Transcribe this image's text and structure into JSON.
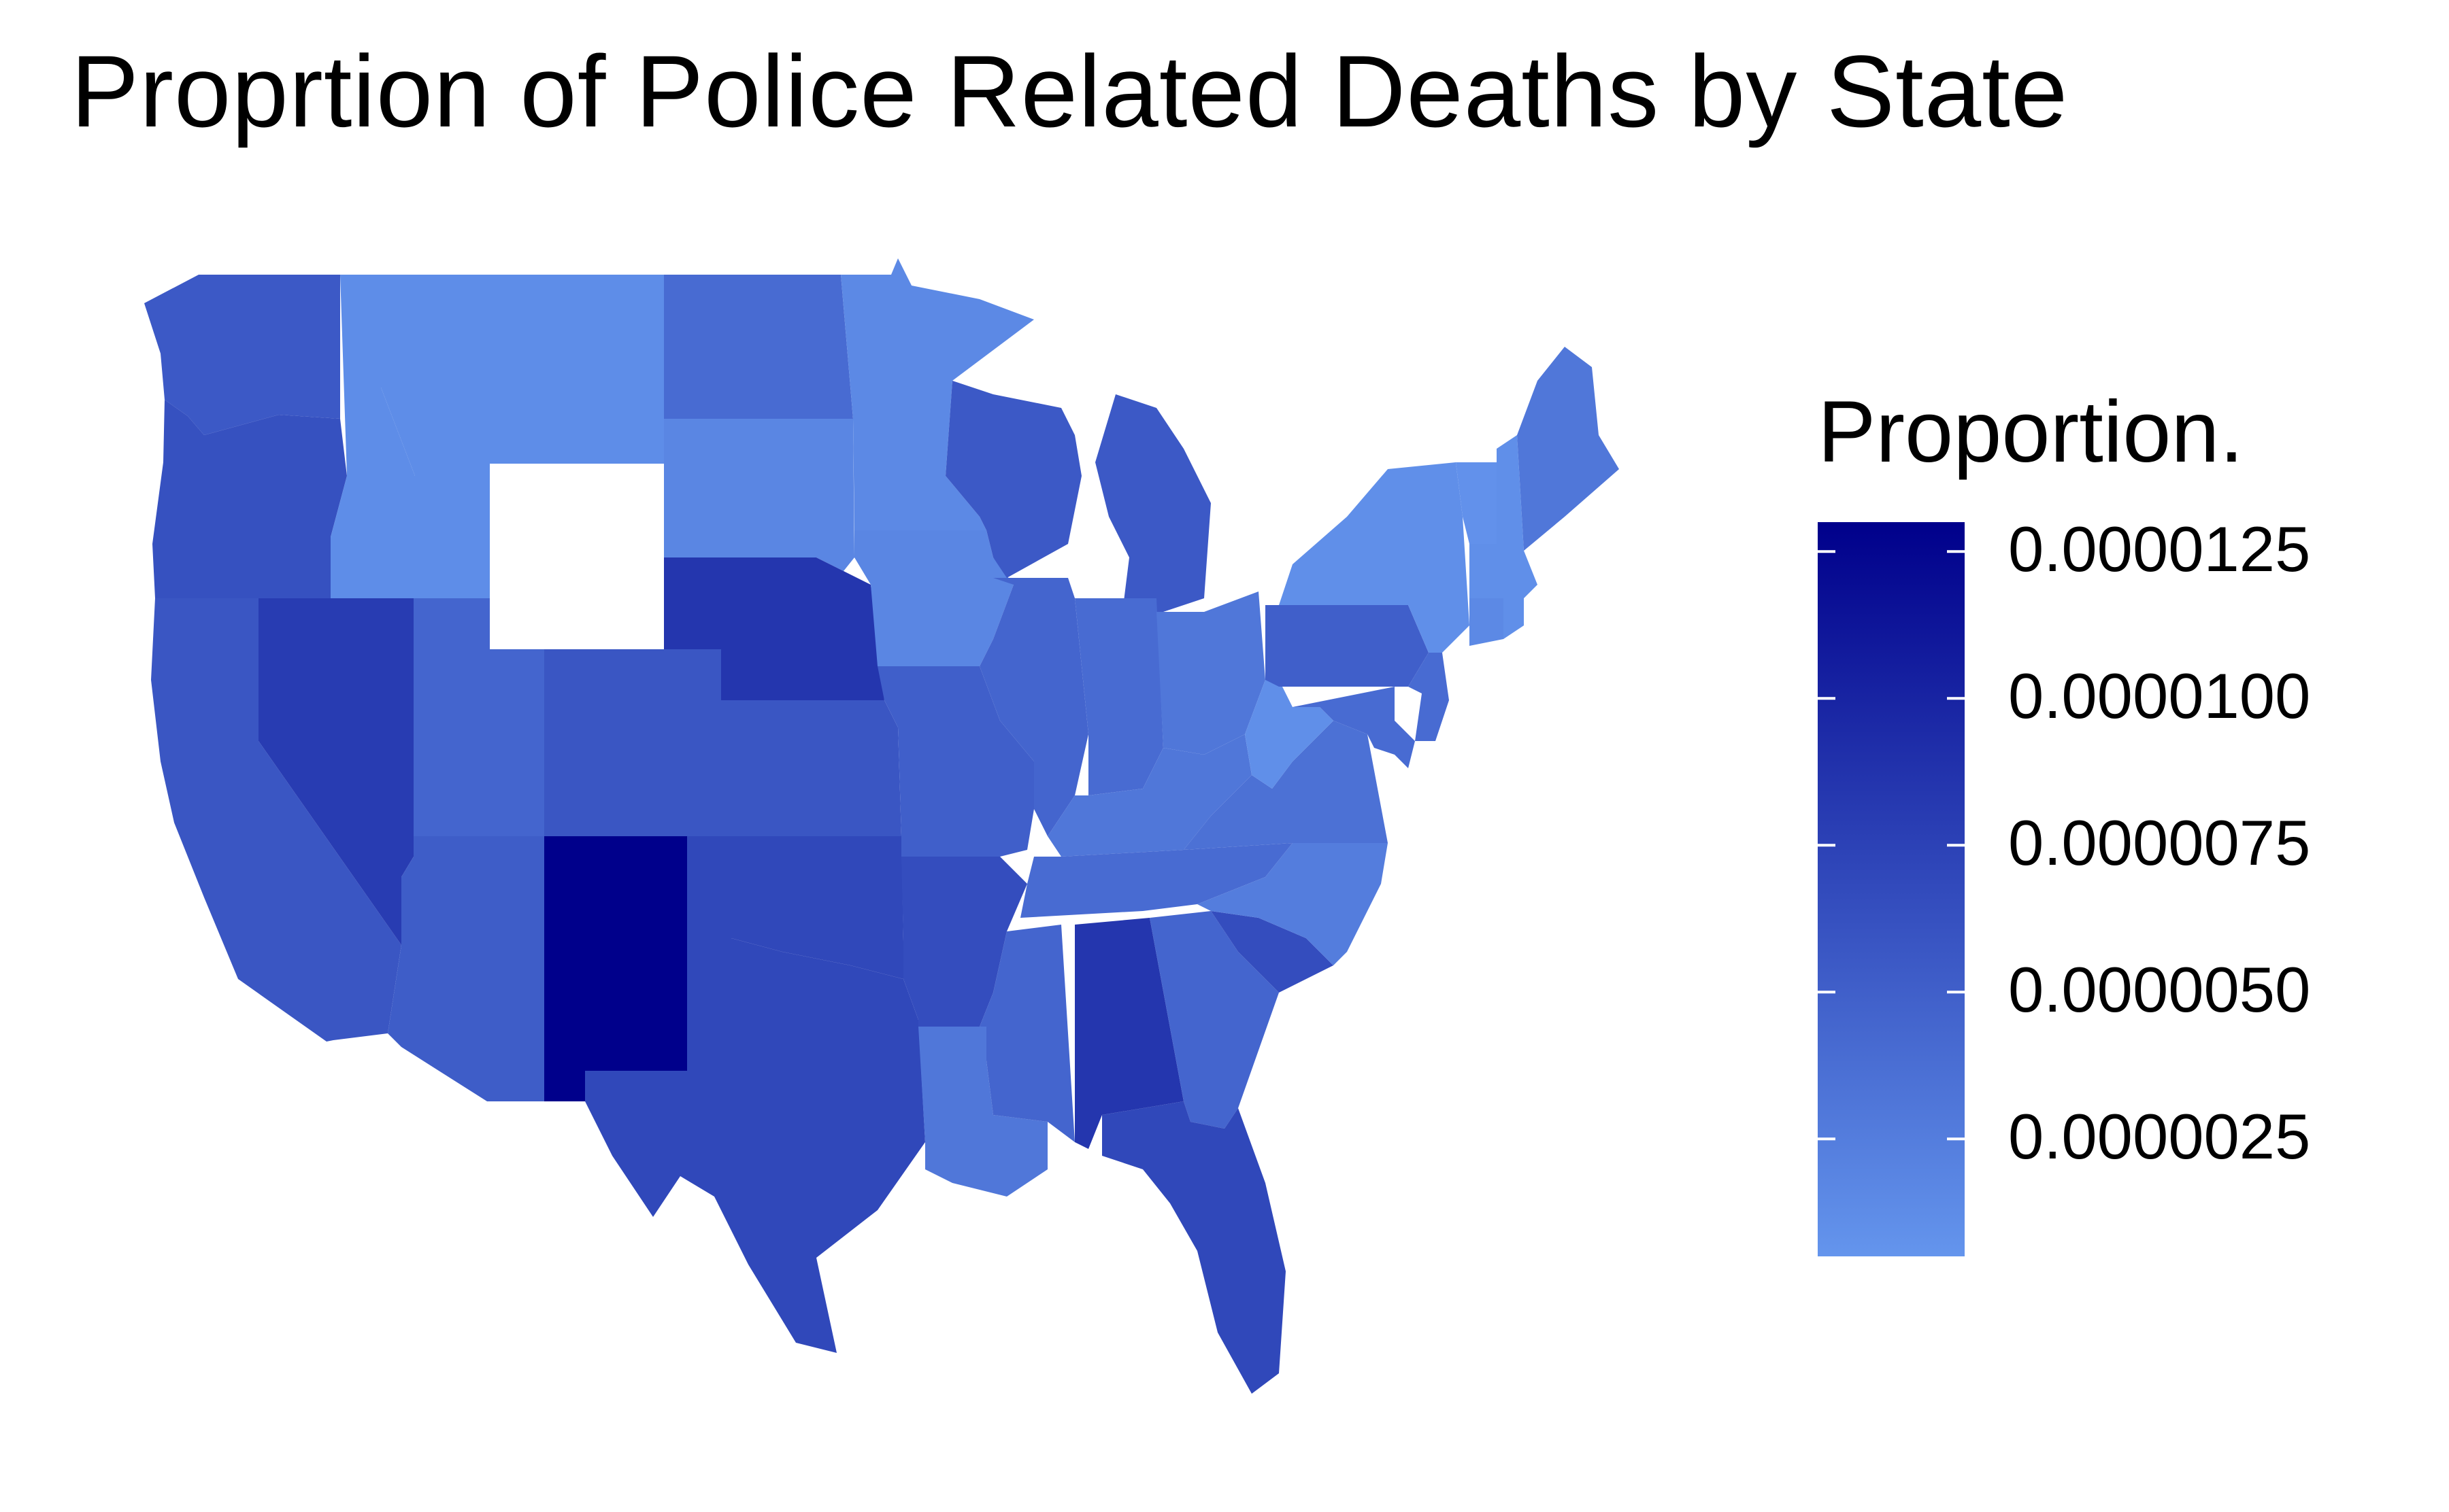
{
  "title": "Proprtion of Police Related Deaths by State",
  "legend": {
    "title": "Proportion.",
    "color_low": "#6495ED",
    "color_high": "#00008B",
    "domain": [
      5e-07,
      1.3e-05
    ],
    "ticks": [
      {
        "value": 1.25e-05,
        "label": "0.0000125"
      },
      {
        "value": 1e-05,
        "label": "0.0000100"
      },
      {
        "value": 7.5e-06,
        "label": "0.0000075"
      },
      {
        "value": 5e-06,
        "label": "0.0000050"
      },
      {
        "value": 2.5e-06,
        "label": "0.0000025"
      }
    ]
  },
  "no_data_color": "#FFFFFF",
  "states": [
    {
      "name": "washington",
      "value": 5.5e-06
    },
    {
      "name": "oregon",
      "value": 6.2e-06
    },
    {
      "name": "california",
      "value": 5.8e-06
    },
    {
      "name": "nevada",
      "value": 8e-06
    },
    {
      "name": "idaho",
      "value": 1.2e-06
    },
    {
      "name": "montana",
      "value": 1.2e-06
    },
    {
      "name": "wyoming",
      "value": null
    },
    {
      "name": "utah",
      "value": 4.5e-06
    },
    {
      "name": "arizona",
      "value": 5.2e-06
    },
    {
      "name": "colorado",
      "value": 5.8e-06
    },
    {
      "name": "new mexico",
      "value": 1.3e-05
    },
    {
      "name": "north dakota",
      "value": 4e-06
    },
    {
      "name": "south dakota",
      "value": 1.8e-06
    },
    {
      "name": "nebraska",
      "value": 8.5e-06
    },
    {
      "name": "kansas",
      "value": 5.8e-06
    },
    {
      "name": "oklahoma",
      "value": 7e-06
    },
    {
      "name": "texas",
      "value": 7e-06
    },
    {
      "name": "minnesota",
      "value": 1.5e-06
    },
    {
      "name": "iowa",
      "value": 1.8e-06
    },
    {
      "name": "missouri",
      "value": 5e-06
    },
    {
      "name": "arkansas",
      "value": 6.5e-06
    },
    {
      "name": "louisiana",
      "value": 3e-06
    },
    {
      "name": "wisconsin",
      "value": 5.5e-06
    },
    {
      "name": "illinois",
      "value": 4.5e-06
    },
    {
      "name": "michigan",
      "value": 5.5e-06
    },
    {
      "name": "indiana",
      "value": 4e-06
    },
    {
      "name": "ohio",
      "value": 3e-06
    },
    {
      "name": "kentucky",
      "value": 3e-06
    },
    {
      "name": "tennessee",
      "value": 4e-06
    },
    {
      "name": "mississippi",
      "value": 4.5e-06
    },
    {
      "name": "alabama",
      "value": 8.5e-06
    },
    {
      "name": "georgia",
      "value": 4.5e-06
    },
    {
      "name": "florida",
      "value": 7e-06
    },
    {
      "name": "south carolina",
      "value": 6.5e-06
    },
    {
      "name": "north carolina",
      "value": 2.5e-06
    },
    {
      "name": "virginia",
      "value": 3.5e-06
    },
    {
      "name": "west virginia",
      "value": 1e-06
    },
    {
      "name": "pennsylvania",
      "value": 5e-06
    },
    {
      "name": "new york",
      "value": 1e-06
    },
    {
      "name": "vermont",
      "value": 8e-07
    },
    {
      "name": "new hampshire",
      "value": 1e-06
    },
    {
      "name": "maine",
      "value": 3e-06
    },
    {
      "name": "massachusetts",
      "value": 1e-06
    },
    {
      "name": "connecticut",
      "value": 1.5e-06
    },
    {
      "name": "new jersey",
      "value": 4e-06
    },
    {
      "name": "delaware",
      "value": 4e-06
    },
    {
      "name": "maryland",
      "value": 4e-06
    },
    {
      "name": "rhode island",
      "value": 1e-06
    }
  ]
}
